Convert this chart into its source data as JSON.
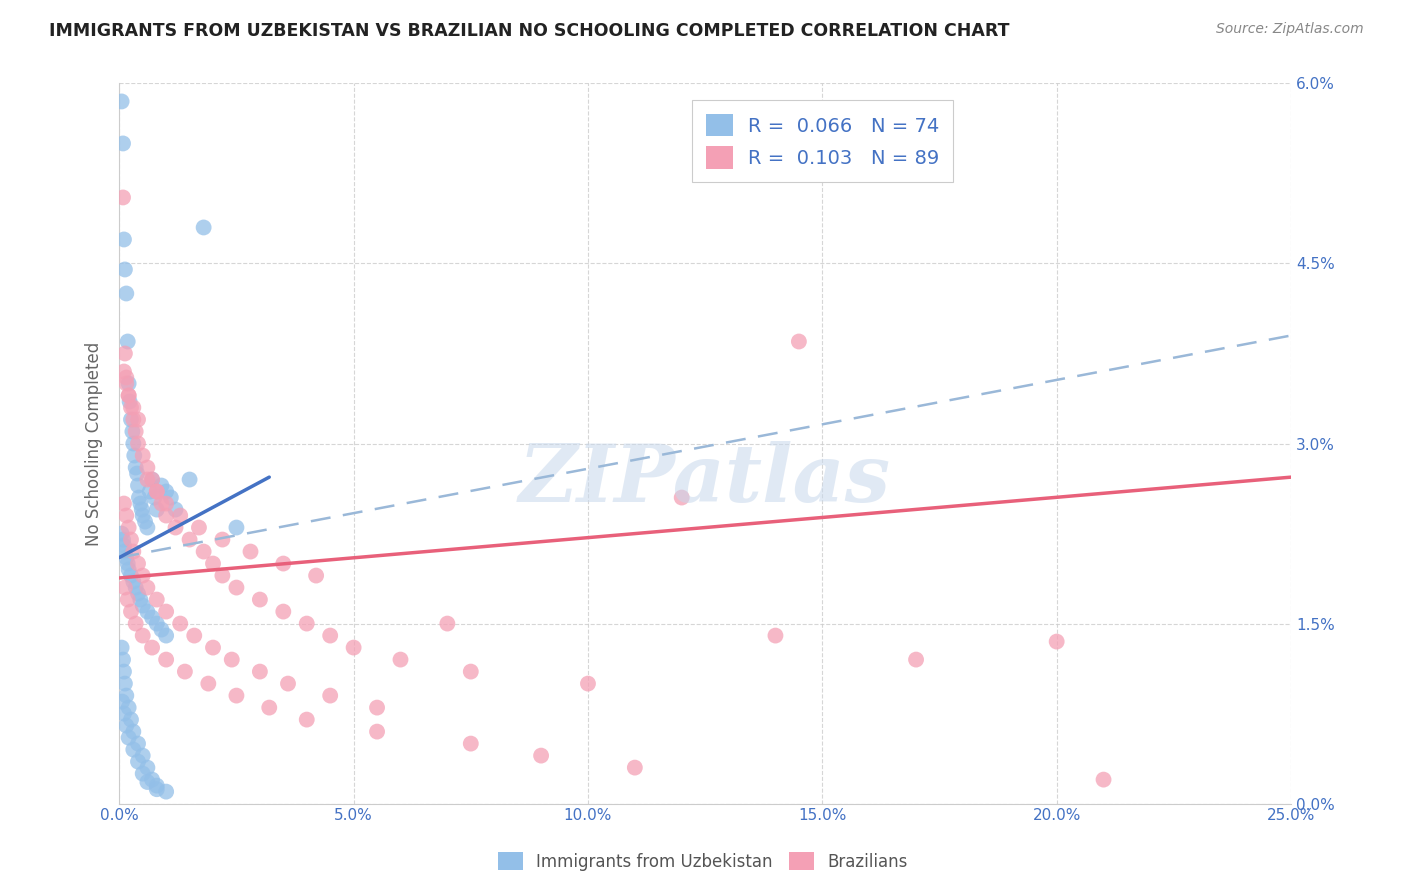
{
  "title": "IMMIGRANTS FROM UZBEKISTAN VS BRAZILIAN NO SCHOOLING COMPLETED CORRELATION CHART",
  "source": "Source: ZipAtlas.com",
  "ylabel": "No Schooling Completed",
  "ytick_vals": [
    0.0,
    1.5,
    3.0,
    4.5,
    6.0
  ],
  "xlim": [
    0.0,
    25.0
  ],
  "ylim": [
    0.0,
    6.0
  ],
  "color_uzbek": "#93bfe8",
  "color_brazil": "#f4a0b5",
  "color_uzbek_line": "#4472c4",
  "color_brazil_line": "#e8607a",
  "watermark": "ZIPatlas",
  "uzbek_line_x": [
    0.0,
    3.2
  ],
  "uzbek_line_y": [
    2.05,
    2.72
  ],
  "brazil_line_x": [
    0.0,
    25.0
  ],
  "brazil_line_y": [
    1.88,
    2.72
  ],
  "dash_line_x": [
    0.0,
    25.0
  ],
  "dash_line_y": [
    2.05,
    3.9
  ],
  "uzbek_scatter_x": [
    0.05,
    0.08,
    0.1,
    0.12,
    0.15,
    0.18,
    0.2,
    0.22,
    0.25,
    0.28,
    0.3,
    0.32,
    0.35,
    0.38,
    0.4,
    0.42,
    0.45,
    0.48,
    0.5,
    0.55,
    0.6,
    0.65,
    0.7,
    0.75,
    0.8,
    0.9,
    1.0,
    1.1,
    1.2,
    1.5,
    0.05,
    0.08,
    0.1,
    0.12,
    0.15,
    0.18,
    0.2,
    0.25,
    0.3,
    0.35,
    0.4,
    0.45,
    0.5,
    0.6,
    0.7,
    0.8,
    0.9,
    1.0,
    2.5,
    0.05,
    0.08,
    0.1,
    0.12,
    0.15,
    0.2,
    0.25,
    0.3,
    0.4,
    0.5,
    0.6,
    0.7,
    0.8,
    1.0,
    1.8,
    0.06,
    0.1,
    0.15,
    0.2,
    0.3,
    0.4,
    0.5,
    0.6,
    0.8
  ],
  "uzbek_scatter_y": [
    5.85,
    5.5,
    4.7,
    4.45,
    4.25,
    3.85,
    3.5,
    3.35,
    3.2,
    3.1,
    3.0,
    2.9,
    2.8,
    2.75,
    2.65,
    2.55,
    2.5,
    2.45,
    2.4,
    2.35,
    2.3,
    2.6,
    2.7,
    2.55,
    2.45,
    2.65,
    2.6,
    2.55,
    2.45,
    2.7,
    2.25,
    2.2,
    2.15,
    2.1,
    2.05,
    2.0,
    1.95,
    1.9,
    1.85,
    1.8,
    1.75,
    1.7,
    1.65,
    1.6,
    1.55,
    1.5,
    1.45,
    1.4,
    2.3,
    1.3,
    1.2,
    1.1,
    1.0,
    0.9,
    0.8,
    0.7,
    0.6,
    0.5,
    0.4,
    0.3,
    0.2,
    0.15,
    0.1,
    4.8,
    0.85,
    0.75,
    0.65,
    0.55,
    0.45,
    0.35,
    0.25,
    0.18,
    0.12
  ],
  "brazil_scatter_x": [
    0.08,
    0.12,
    0.15,
    0.2,
    0.25,
    0.3,
    0.35,
    0.4,
    0.5,
    0.6,
    0.7,
    0.8,
    0.9,
    1.0,
    1.2,
    1.5,
    1.8,
    2.0,
    2.2,
    2.5,
    3.0,
    3.5,
    4.0,
    4.5,
    5.0,
    6.0,
    7.5,
    10.0,
    14.5,
    0.1,
    0.15,
    0.2,
    0.25,
    0.3,
    0.4,
    0.5,
    0.6,
    0.8,
    1.0,
    1.3,
    1.6,
    2.0,
    2.4,
    3.0,
    3.6,
    4.5,
    5.5,
    0.1,
    0.15,
    0.2,
    0.3,
    0.4,
    0.6,
    0.8,
    1.0,
    1.3,
    1.7,
    2.2,
    2.8,
    3.5,
    4.2,
    7.0,
    12.0,
    20.0,
    0.12,
    0.18,
    0.25,
    0.35,
    0.5,
    0.7,
    1.0,
    1.4,
    1.9,
    2.5,
    3.2,
    4.0,
    5.5,
    7.5,
    9.0,
    11.0,
    14.0,
    17.0,
    21.0
  ],
  "brazil_scatter_y": [
    5.05,
    3.75,
    3.55,
    3.4,
    3.3,
    3.2,
    3.1,
    3.0,
    2.9,
    2.8,
    2.7,
    2.6,
    2.5,
    2.4,
    2.3,
    2.2,
    2.1,
    2.0,
    1.9,
    1.8,
    1.7,
    1.6,
    1.5,
    1.4,
    1.3,
    1.2,
    1.1,
    1.0,
    3.85,
    2.5,
    2.4,
    2.3,
    2.2,
    2.1,
    2.0,
    1.9,
    1.8,
    1.7,
    1.6,
    1.5,
    1.4,
    1.3,
    1.2,
    1.1,
    1.0,
    0.9,
    0.8,
    3.6,
    3.5,
    3.4,
    3.3,
    3.2,
    2.7,
    2.6,
    2.5,
    2.4,
    2.3,
    2.2,
    2.1,
    2.0,
    1.9,
    1.5,
    2.55,
    1.35,
    1.8,
    1.7,
    1.6,
    1.5,
    1.4,
    1.3,
    1.2,
    1.1,
    1.0,
    0.9,
    0.8,
    0.7,
    0.6,
    0.5,
    0.4,
    0.3,
    1.4,
    1.2,
    0.2
  ]
}
